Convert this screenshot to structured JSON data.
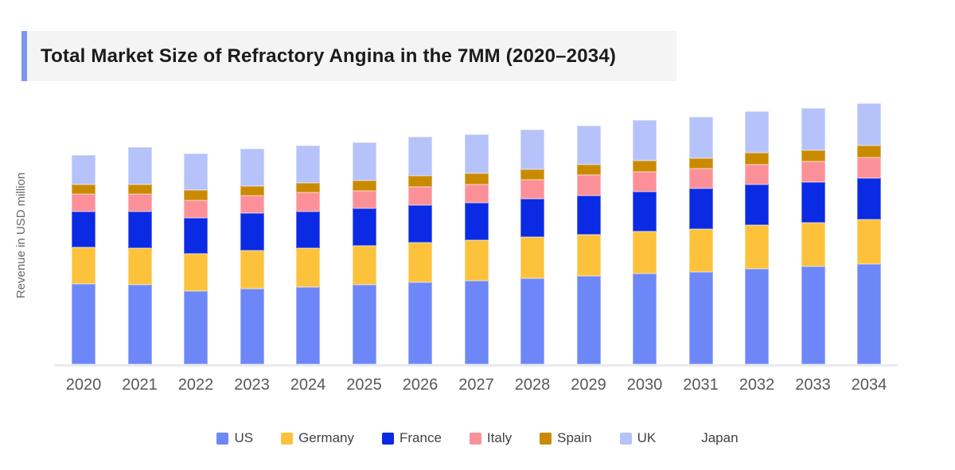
{
  "header": {
    "title": "Total Market Size of Refractory Angina in the 7MM (2020–2034)",
    "accent_color": "#7b96f2",
    "background_color": "#f4f4f5"
  },
  "chart_data": {
    "type": "bar",
    "variant": "stacked-vertical",
    "title": "Total Market Size of Refractory Angina in the 7MM (2020–2034)",
    "xlabel": "",
    "ylabel": "Revenue in USD million",
    "categories": [
      "2020",
      "2021",
      "2022",
      "2023",
      "2024",
      "2025",
      "2026",
      "2027",
      "2028",
      "2029",
      "2030",
      "2031",
      "2032",
      "2033",
      "2034"
    ],
    "y_axis_tick_labels": "none shown (values below are relative estimates read from bar pixel heights)",
    "ylim": [
      0,
      350
    ],
    "grid": false,
    "legend_position": "bottom",
    "stack_order_bottom_to_top": [
      "US",
      "Germany",
      "France",
      "Italy",
      "Spain",
      "UK",
      "Japan"
    ],
    "series": [
      {
        "name": "US",
        "color": "#6d87f8",
        "values": [
          101,
          100,
          92,
          95,
          97,
          100,
          103,
          105,
          108,
          111,
          114,
          116,
          120,
          123,
          126
        ]
      },
      {
        "name": "Germany",
        "color": "#fdc23c",
        "values": [
          46,
          46,
          47,
          48,
          49,
          49,
          50,
          51,
          52,
          52,
          53,
          54,
          55,
          55,
          56
        ]
      },
      {
        "name": "France",
        "color": "#0a2ae4",
        "values": [
          45,
          46,
          45,
          47,
          46,
          47,
          47,
          47,
          48,
          49,
          50,
          51,
          51,
          51,
          52
        ]
      },
      {
        "name": "Italy",
        "color": "#fc9098",
        "values": [
          22,
          22,
          22,
          22,
          24,
          22,
          23,
          23,
          24,
          26,
          25,
          25,
          25,
          26,
          26
        ]
      },
      {
        "name": "Spain",
        "color": "#c98a00",
        "values": [
          12,
          12,
          13,
          12,
          12,
          13,
          14,
          14,
          13,
          13,
          14,
          13,
          15,
          14,
          15
        ]
      },
      {
        "name": "UK",
        "color": "#b6c3fa",
        "values": [
          37,
          47,
          46,
          47,
          47,
          48,
          49,
          49,
          50,
          49,
          51,
          52,
          52,
          53,
          53
        ]
      },
      {
        "name": "Japan",
        "color": "#ffffff",
        "values": [
          0,
          0,
          0,
          0,
          0,
          0,
          0,
          0,
          0,
          0,
          0,
          0,
          0,
          0,
          0
        ]
      }
    ],
    "totals_relative": [
      263,
      273,
      265,
      271,
      275,
      279,
      286,
      289,
      295,
      300,
      307,
      311,
      318,
      322,
      328
    ]
  }
}
